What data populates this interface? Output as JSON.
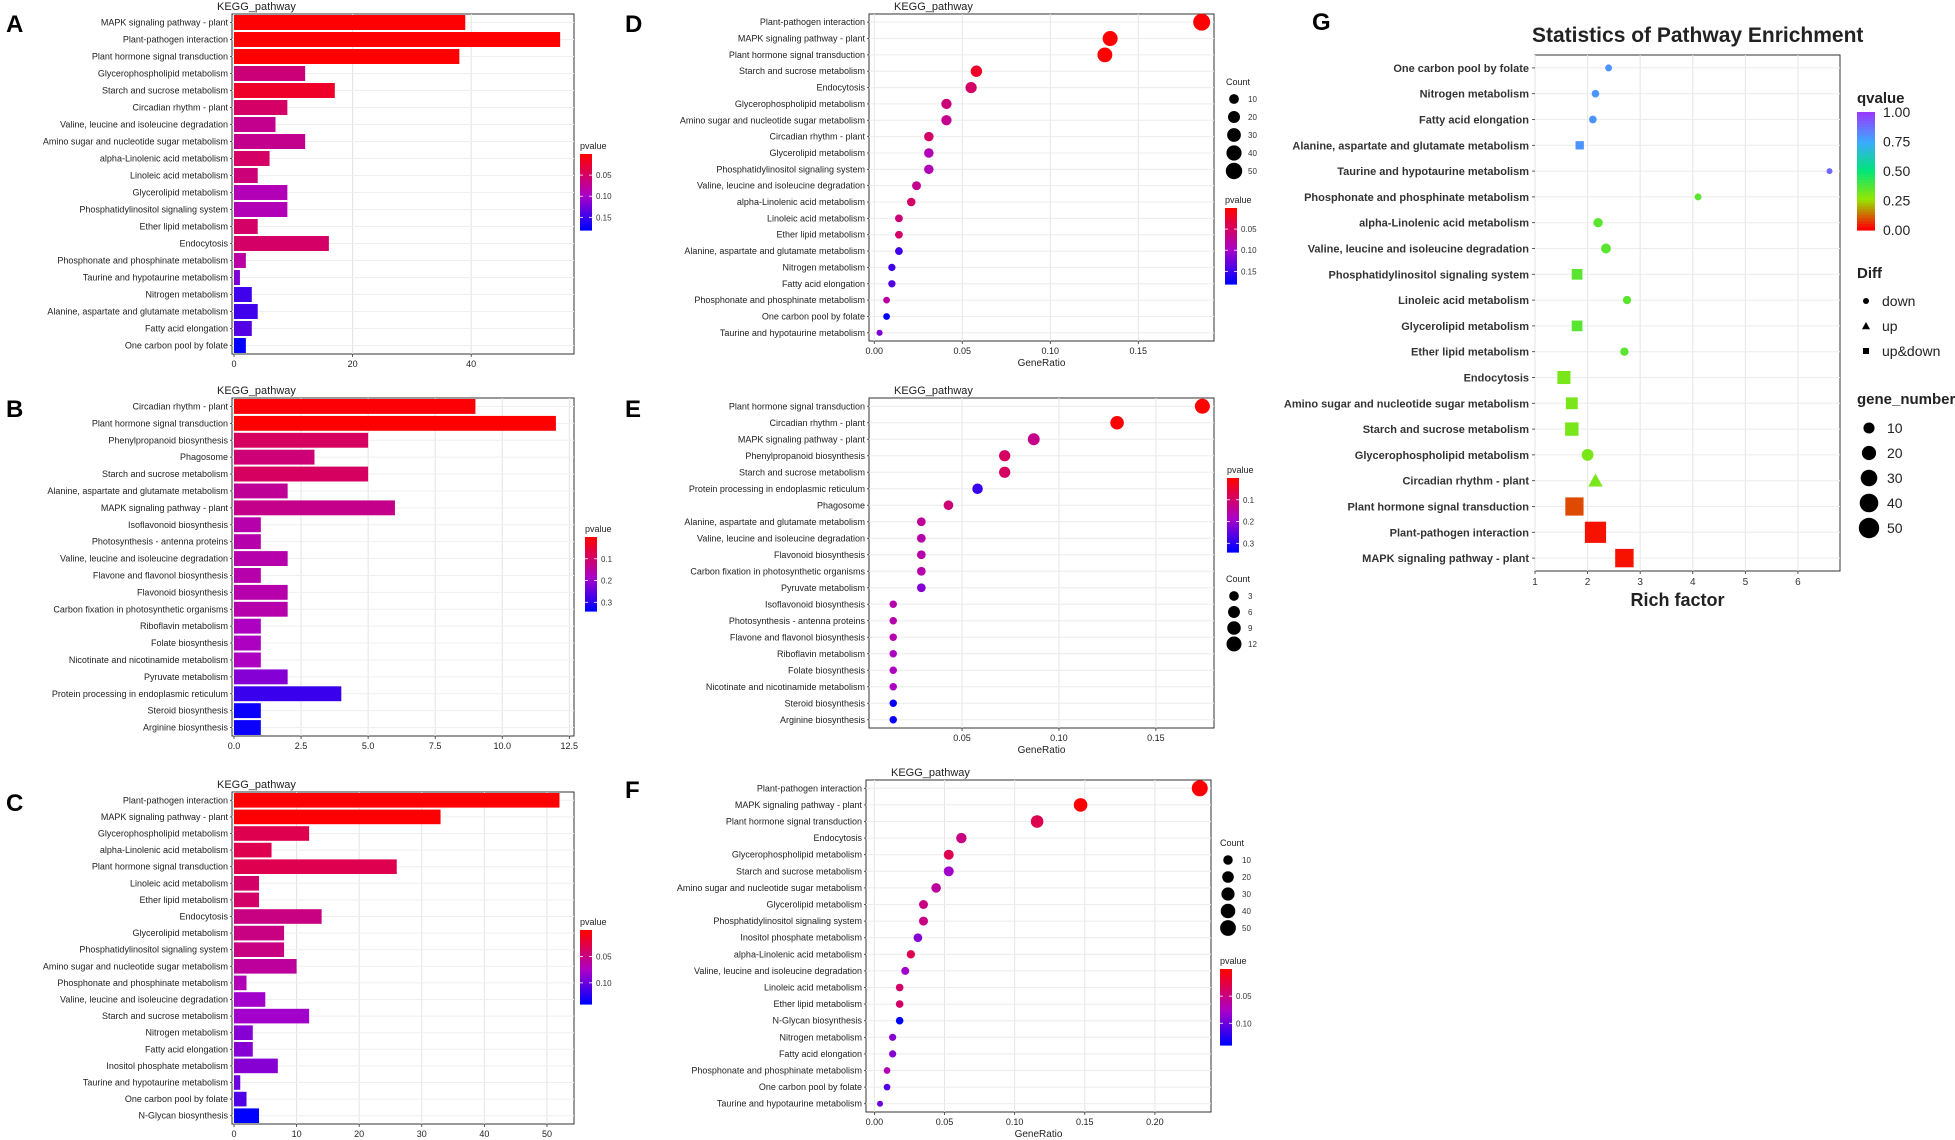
{
  "chart_data": [
    {
      "id": "A",
      "panel_label": "A",
      "type": "bar",
      "orientation": "horizontal",
      "title": "KEGG_pathway",
      "categories": [
        "MAPK signaling pathway - plant",
        "Plant-pathogen interaction",
        "Plant hormone signal transduction",
        "Glycerophospholipid metabolism",
        "Starch and sucrose metabolism",
        "Circadian rhythm - plant",
        "Valine, leucine and isoleucine degradation",
        "Amino sugar and nucleotide sugar metabolism",
        "alpha-Linolenic acid metabolism",
        "Linoleic acid metabolism",
        "Glycerolipid metabolism",
        "Phosphatidylinositol signaling system",
        "Ether lipid metabolism",
        "Endocytosis",
        "Phosphonate and phosphinate metabolism",
        "Taurine and hypotaurine metabolism",
        "Nitrogen metabolism",
        "Alanine, aspartate and glutamate metabolism",
        "Fatty acid elongation",
        "One carbon pool by folate"
      ],
      "values": [
        39,
        55,
        38,
        12,
        17,
        9,
        7,
        12,
        6,
        4,
        9,
        9,
        4,
        16,
        2,
        1,
        3,
        4,
        3,
        2
      ],
      "pvalues": [
        0.001,
        0.001,
        0.001,
        0.06,
        0.02,
        0.05,
        0.07,
        0.07,
        0.05,
        0.06,
        0.09,
        0.09,
        0.05,
        0.05,
        0.08,
        0.12,
        0.15,
        0.15,
        0.14,
        0.18
      ],
      "xlim": [
        0,
        57
      ],
      "xticks": [
        0,
        20,
        40
      ],
      "legend_title": "pvalue",
      "color_range": [
        0.0,
        0.18
      ],
      "legend_ticks": [
        0.05,
        0.1,
        0.15
      ],
      "legend_tick_labels": [
        "0.05",
        "0.10",
        "0.15"
      ]
    },
    {
      "id": "B",
      "panel_label": "B",
      "type": "bar",
      "orientation": "horizontal",
      "title": "KEGG_pathway",
      "categories": [
        "Circadian rhythm - plant",
        "Plant hormone signal transduction",
        "Phenylpropanoid biosynthesis",
        "Phagosome",
        "Starch and sucrose metabolism",
        "Alanine, aspartate and glutamate metabolism",
        "MAPK signaling pathway - plant",
        "Isoflavonoid biosynthesis",
        "Photosynthesis - antenna proteins",
        "Valine, leucine and isoleucine degradation",
        "Flavone and flavonol biosynthesis",
        "Flavonoid biosynthesis",
        "Carbon fixation in photosynthetic organisms",
        "Riboflavin metabolism",
        "Folate biosynthesis",
        "Nicotinate and nicotinamide metabolism",
        "Pyruvate metabolism",
        "Protein processing in endoplasmic reticulum",
        "Steroid biosynthesis",
        "Arginine biosynthesis"
      ],
      "values": [
        9,
        12,
        5,
        3,
        5,
        2,
        6,
        1,
        1,
        2,
        1,
        2,
        2,
        1,
        1,
        1,
        2,
        4,
        1,
        1
      ],
      "pvalues": [
        0.005,
        0.001,
        0.09,
        0.11,
        0.09,
        0.14,
        0.13,
        0.16,
        0.16,
        0.16,
        0.16,
        0.16,
        0.16,
        0.18,
        0.18,
        0.18,
        0.22,
        0.29,
        0.33,
        0.33
      ],
      "xlim": [
        0,
        12.6
      ],
      "xticks": [
        0.0,
        2.5,
        5.0,
        7.5,
        10.0,
        12.5
      ],
      "xtick_labels": [
        "0.0",
        "2.5",
        "5.0",
        "7.5",
        "10.0",
        "12.5"
      ],
      "legend_title": "pvalue",
      "color_range": [
        0.0,
        0.34
      ],
      "legend_ticks": [
        0.1,
        0.2,
        0.3
      ],
      "legend_tick_labels": [
        "0.1",
        "0.2",
        "0.3"
      ]
    },
    {
      "id": "C",
      "panel_label": "C",
      "type": "bar",
      "orientation": "horizontal",
      "title": "KEGG_pathway",
      "categories": [
        "Plant-pathogen interaction",
        "MAPK signaling pathway - plant",
        "Glycerophospholipid metabolism",
        "alpha-Linolenic acid metabolism",
        "Plant hormone signal transduction",
        "Linoleic acid metabolism",
        "Ether lipid metabolism",
        "Endocytosis",
        "Glycerolipid metabolism",
        "Phosphatidylinositol signaling system",
        "Amino sugar and nucleotide sugar metabolism",
        "Phosphonate and phosphinate metabolism",
        "Valine, leucine and isoleucine degradation",
        "Starch and sucrose metabolism",
        "Nitrogen metabolism",
        "Fatty acid elongation",
        "Inositol phosphate metabolism",
        "Taurine and hypotaurine metabolism",
        "One carbon pool by folate",
        "N-Glycan biosynthesis"
      ],
      "values": [
        52,
        33,
        12,
        6,
        26,
        4,
        4,
        14,
        8,
        8,
        10,
        2,
        5,
        12,
        3,
        3,
        7,
        1,
        2,
        4
      ],
      "pvalues": [
        0.001,
        0.001,
        0.03,
        0.03,
        0.03,
        0.04,
        0.04,
        0.05,
        0.05,
        0.05,
        0.06,
        0.07,
        0.08,
        0.08,
        0.09,
        0.09,
        0.09,
        0.1,
        0.11,
        0.14
      ],
      "xlim": [
        0,
        54
      ],
      "xticks": [
        0,
        10,
        20,
        30,
        40,
        50
      ],
      "legend_title": "pvalue",
      "color_range": [
        0.0,
        0.14
      ],
      "legend_ticks": [
        0.05,
        0.1
      ],
      "legend_tick_labels": [
        "0.05",
        "0.10"
      ]
    },
    {
      "id": "D",
      "panel_label": "D",
      "type": "scatter",
      "title": "KEGG_pathway",
      "xlabel": "GeneRatio",
      "categories": [
        "Plant-pathogen interaction",
        "MAPK signaling pathway - plant",
        "Plant hormone signal transduction",
        "Starch and sucrose metabolism",
        "Endocytosis",
        "Glycerophospholipid metabolism",
        "Amino sugar and nucleotide sugar metabolism",
        "Circadian rhythm - plant",
        "Glycerolipid metabolism",
        "Phosphatidylinositol signaling system",
        "Valine, leucine and isoleucine degradation",
        "alpha-Linolenic acid metabolism",
        "Linoleic acid metabolism",
        "Ether lipid metabolism",
        "Alanine, aspartate and glutamate metabolism",
        "Nitrogen metabolism",
        "Fatty acid elongation",
        "Phosphonate and phosphinate metabolism",
        "One carbon pool by folate",
        "Taurine and hypotaurine metabolism"
      ],
      "x": [
        0.186,
        0.134,
        0.131,
        0.058,
        0.055,
        0.041,
        0.041,
        0.031,
        0.031,
        0.031,
        0.024,
        0.021,
        0.014,
        0.014,
        0.014,
        0.01,
        0.01,
        0.007,
        0.007,
        0.003
      ],
      "counts": [
        55,
        39,
        38,
        17,
        16,
        12,
        12,
        9,
        9,
        9,
        7,
        6,
        4,
        4,
        4,
        3,
        3,
        2,
        2,
        1
      ],
      "pvalues": [
        0.001,
        0.001,
        0.001,
        0.02,
        0.05,
        0.06,
        0.07,
        0.05,
        0.09,
        0.09,
        0.07,
        0.05,
        0.06,
        0.05,
        0.15,
        0.15,
        0.14,
        0.08,
        0.18,
        0.12
      ],
      "xlim": [
        -0.003,
        0.193
      ],
      "xticks": [
        0.0,
        0.05,
        0.1,
        0.15
      ],
      "xtick_labels": [
        "0.00",
        "0.05",
        "0.10",
        "0.15"
      ],
      "size_legend_title": "Count",
      "size_legend": [
        10,
        20,
        30,
        40,
        50
      ],
      "size_max": 55,
      "color_legend_title": "pvalue",
      "color_range": [
        0.0,
        0.18
      ],
      "color_legend_ticks": [
        0.05,
        0.1,
        0.15
      ],
      "color_legend_tick_labels": [
        "0.05",
        "0.10",
        "0.15"
      ]
    },
    {
      "id": "E",
      "panel_label": "E",
      "type": "scatter",
      "title": "KEGG_pathway",
      "xlabel": "GeneRatio",
      "categories": [
        "Plant hormone signal transduction",
        "Circadian rhythm - plant",
        "MAPK signaling pathway - plant",
        "Phenylpropanoid biosynthesis",
        "Starch and sucrose metabolism",
        "Protein processing in endoplasmic reticulum",
        "Phagosome",
        "Alanine, aspartate and glutamate metabolism",
        "Valine, leucine and isoleucine degradation",
        "Flavonoid biosynthesis",
        "Carbon fixation in photosynthetic organisms",
        "Pyruvate metabolism",
        "Isoflavonoid biosynthesis",
        "Photosynthesis - antenna proteins",
        "Flavone and flavonol biosynthesis",
        "Riboflavin metabolism",
        "Folate biosynthesis",
        "Nicotinate and nicotinamide metabolism",
        "Steroid biosynthesis",
        "Arginine biosynthesis"
      ],
      "x": [
        0.174,
        0.13,
        0.087,
        0.072,
        0.072,
        0.058,
        0.043,
        0.029,
        0.029,
        0.029,
        0.029,
        0.029,
        0.0145,
        0.0145,
        0.0145,
        0.0145,
        0.0145,
        0.0145,
        0.0145,
        0.0145
      ],
      "counts": [
        12,
        9,
        6,
        5,
        5,
        4,
        3,
        2,
        2,
        2,
        2,
        2,
        1,
        1,
        1,
        1,
        1,
        1,
        1,
        1
      ],
      "pvalues": [
        0.001,
        0.005,
        0.13,
        0.09,
        0.09,
        0.29,
        0.11,
        0.14,
        0.16,
        0.16,
        0.16,
        0.22,
        0.16,
        0.16,
        0.16,
        0.18,
        0.18,
        0.18,
        0.33,
        0.33
      ],
      "xlim": [
        0.002,
        0.18
      ],
      "xticks": [
        0.05,
        0.1,
        0.15
      ],
      "xtick_labels": [
        "0.05",
        "0.10",
        "0.15"
      ],
      "size_legend_title": "Count",
      "size_legend": [
        3,
        6,
        9,
        12
      ],
      "size_max": 12,
      "color_legend_title": "pvalue",
      "color_range": [
        0.0,
        0.34
      ],
      "color_legend_ticks": [
        0.1,
        0.2,
        0.3
      ],
      "color_legend_tick_labels": [
        "0.1",
        "0.2",
        "0.3"
      ]
    },
    {
      "id": "F",
      "panel_label": "F",
      "type": "scatter",
      "title": "KEGG_pathway",
      "xlabel": "GeneRatio",
      "categories": [
        "Plant-pathogen interaction",
        "MAPK signaling pathway - plant",
        "Plant hormone signal transduction",
        "Endocytosis",
        "Glycerophospholipid metabolism",
        "Starch and sucrose metabolism",
        "Amino sugar and nucleotide sugar metabolism",
        "Glycerolipid metabolism",
        "Phosphatidylinositol signaling system",
        "Inositol phosphate metabolism",
        "alpha-Linolenic acid metabolism",
        "Valine, leucine and isoleucine degradation",
        "Linoleic acid metabolism",
        "Ether lipid metabolism",
        "N-Glycan biosynthesis",
        "Nitrogen metabolism",
        "Fatty acid elongation",
        "Phosphonate and phosphinate metabolism",
        "One carbon pool by folate",
        "Taurine and hypotaurine metabolism"
      ],
      "x": [
        0.232,
        0.147,
        0.116,
        0.062,
        0.053,
        0.053,
        0.044,
        0.035,
        0.035,
        0.031,
        0.026,
        0.022,
        0.018,
        0.018,
        0.018,
        0.013,
        0.013,
        0.009,
        0.009,
        0.004
      ],
      "counts": [
        52,
        33,
        26,
        14,
        12,
        12,
        10,
        8,
        8,
        7,
        6,
        5,
        4,
        4,
        4,
        3,
        3,
        2,
        2,
        1
      ],
      "pvalues": [
        0.001,
        0.001,
        0.03,
        0.05,
        0.03,
        0.08,
        0.06,
        0.05,
        0.05,
        0.09,
        0.03,
        0.08,
        0.04,
        0.04,
        0.14,
        0.09,
        0.09,
        0.07,
        0.11,
        0.1
      ],
      "xlim": [
        -0.006,
        0.24
      ],
      "xticks": [
        0.0,
        0.05,
        0.1,
        0.15,
        0.2
      ],
      "xtick_labels": [
        "0.00",
        "0.05",
        "0.10",
        "0.15",
        "0.20"
      ],
      "size_legend_title": "Count",
      "size_legend": [
        10,
        20,
        30,
        40,
        50
      ],
      "size_max": 52,
      "color_legend_title": "pvalue",
      "color_range": [
        0.0,
        0.14
      ],
      "color_legend_ticks": [
        0.05,
        0.1
      ],
      "color_legend_tick_labels": [
        "0.05",
        "0.10"
      ]
    },
    {
      "id": "G",
      "panel_label": "G",
      "type": "scatter",
      "title": "Statistics of Pathway Enrichment",
      "xlabel": "Rich factor",
      "categories": [
        "One carbon pool by folate",
        "Nitrogen metabolism",
        "Fatty acid elongation",
        "Alanine, aspartate and glutamate metabolism",
        "Taurine and hypotaurine metabolism",
        "Phosphonate and phosphinate metabolism",
        "alpha-Linolenic acid metabolism",
        "Valine, leucine and isoleucine degradation",
        "Phosphatidylinositol signaling system",
        "Linoleic acid metabolism",
        "Glycerolipid metabolism",
        "Ether lipid metabolism",
        "Endocytosis",
        "Amino sugar and nucleotide sugar metabolism",
        "Starch and sucrose metabolism",
        "Glycerophospholipid metabolism",
        "Circadian rhythm - plant",
        "Plant hormone signal transduction",
        "Plant-pathogen interaction",
        "MAPK signaling pathway - plant"
      ],
      "x": [
        2.4,
        2.15,
        2.1,
        1.85,
        6.6,
        4.1,
        2.2,
        2.35,
        1.8,
        2.75,
        1.8,
        2.7,
        1.55,
        1.7,
        1.7,
        2.0,
        2.15,
        1.75,
        2.15,
        2.7
      ],
      "gene_number": [
        2,
        3,
        3,
        4,
        1,
        2,
        6,
        7,
        9,
        4,
        9,
        4,
        16,
        12,
        17,
        12,
        9,
        38,
        55,
        39
      ],
      "qvalue": [
        0.8,
        0.8,
        0.8,
        0.8,
        0.9,
        0.35,
        0.35,
        0.35,
        0.35,
        0.35,
        0.35,
        0.35,
        0.3,
        0.3,
        0.3,
        0.3,
        0.3,
        0.08,
        0.02,
        0.02
      ],
      "diff": [
        "down",
        "down",
        "down",
        "up&down",
        "down",
        "down",
        "down",
        "down",
        "up&down",
        "down",
        "up&down",
        "down",
        "up&down",
        "up&down",
        "up&down",
        "down",
        "up",
        "up&down",
        "up&down",
        "up&down"
      ],
      "xlim": [
        1.0,
        6.8
      ],
      "xticks": [
        1,
        2,
        3,
        4,
        5,
        6
      ],
      "qvalue_legend_title": "qvalue",
      "qvalue_legend_ticks": [
        1.0,
        0.75,
        0.5,
        0.25,
        0.0
      ],
      "qvalue_legend_tick_labels": [
        "1.00",
        "0.75",
        "0.50",
        "0.25",
        "0.00"
      ],
      "diff_legend_title": "Diff",
      "diff_legend": [
        "down",
        "up",
        "up&down"
      ],
      "size_legend_title": "gene_number",
      "size_legend": [
        10,
        20,
        30,
        40,
        50
      ],
      "size_max": 55
    }
  ]
}
